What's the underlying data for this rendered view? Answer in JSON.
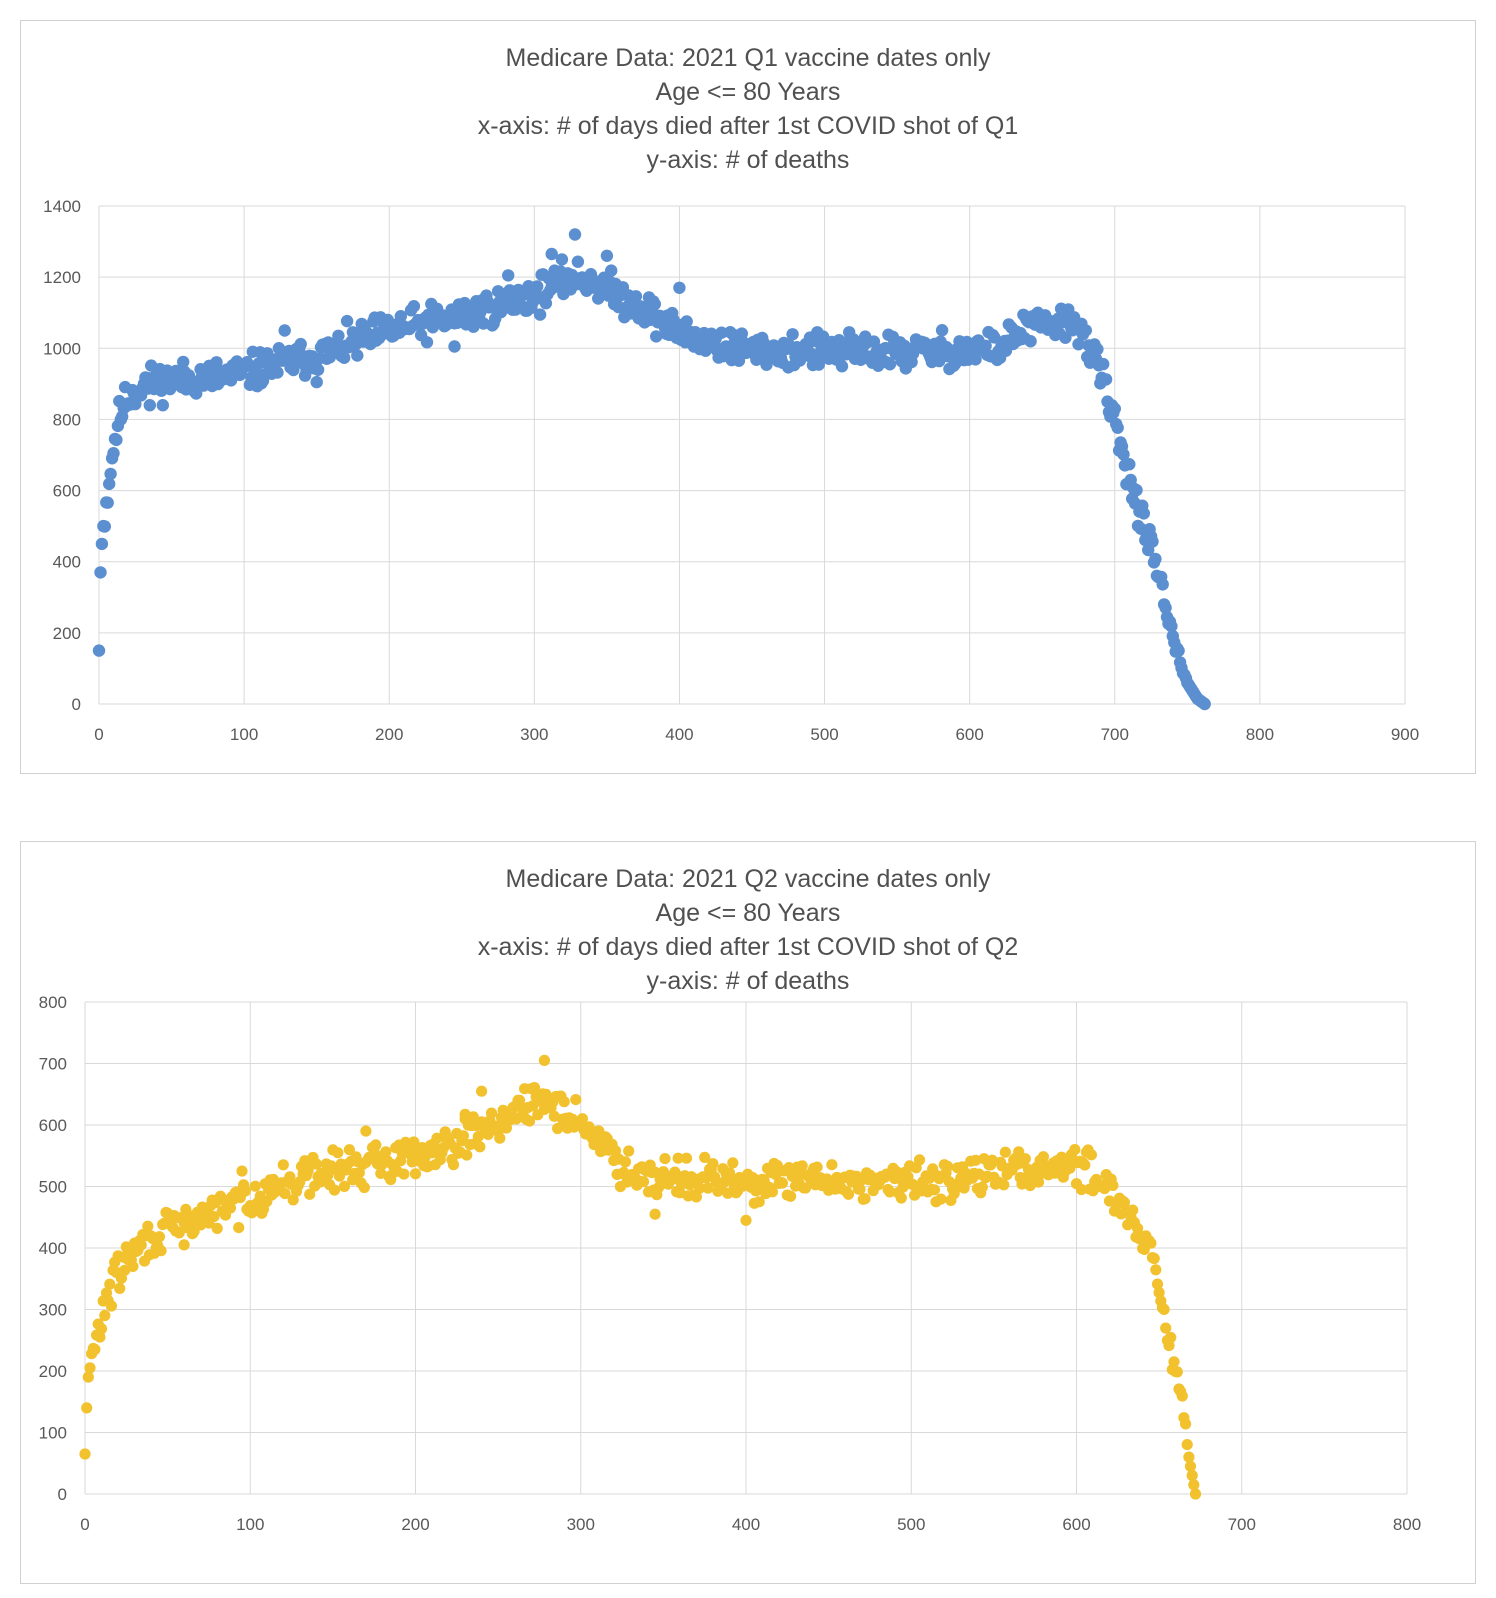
{
  "chart_data": [
    {
      "type": "scatter",
      "title_lines": [
        "Medicare Data: 2021 Q1 vaccine dates only",
        "Age <= 80 Years",
        "x-axis: # of days died after 1st COVID shot of Q1",
        "y-axis: # of deaths"
      ],
      "xlim": [
        0,
        900
      ],
      "ylim": [
        0,
        1400
      ],
      "x_ticks": [
        0,
        100,
        200,
        300,
        400,
        500,
        600,
        700,
        800,
        900
      ],
      "y_ticks": [
        0,
        200,
        400,
        600,
        800,
        1000,
        1200,
        1400
      ],
      "grid": true,
      "marker_color": "#5b8fd0",
      "legend": "none",
      "trend_knots": [
        [
          0,
          150
        ],
        [
          1,
          370
        ],
        [
          2,
          450
        ],
        [
          3,
          500
        ],
        [
          5,
          560
        ],
        [
          7,
          630
        ],
        [
          10,
          720
        ],
        [
          13,
          790
        ],
        [
          17,
          840
        ],
        [
          22,
          870
        ],
        [
          30,
          900
        ],
        [
          50,
          910
        ],
        [
          80,
          920
        ],
        [
          100,
          930
        ],
        [
          130,
          960
        ],
        [
          160,
          990
        ],
        [
          200,
          1050
        ],
        [
          250,
          1090
        ],
        [
          300,
          1150
        ],
        [
          325,
          1200
        ],
        [
          340,
          1190
        ],
        [
          380,
          1100
        ],
        [
          400,
          1040
        ],
        [
          440,
          1000
        ],
        [
          500,
          990
        ],
        [
          560,
          990
        ],
        [
          620,
          1000
        ],
        [
          640,
          1060
        ],
        [
          675,
          1070
        ],
        [
          685,
          980
        ],
        [
          692,
          910
        ],
        [
          700,
          790
        ],
        [
          710,
          640
        ],
        [
          720,
          500
        ],
        [
          730,
          360
        ],
        [
          740,
          180
        ],
        [
          750,
          60
        ],
        [
          757,
          15
        ],
        [
          762,
          0
        ]
      ],
      "noise": 35,
      "outliers": [
        [
          328,
          1320
        ],
        [
          312,
          1265
        ],
        [
          350,
          1260
        ],
        [
          400,
          1170
        ],
        [
          128,
          1050
        ],
        [
          245,
          1005
        ],
        [
          282,
          1205
        ],
        [
          35,
          840
        ],
        [
          150,
          905
        ]
      ]
    },
    {
      "type": "scatter",
      "title_lines": [
        "Medicare Data: 2021 Q2 vaccine dates only",
        "Age <= 80 Years",
        "x-axis: # of days died after 1st COVID shot of Q2",
        "y-axis: # of deaths"
      ],
      "xlim": [
        0,
        800
      ],
      "ylim": [
        0,
        800
      ],
      "x_ticks": [
        0,
        100,
        200,
        300,
        400,
        500,
        600,
        700,
        800
      ],
      "y_ticks": [
        0,
        100,
        200,
        300,
        400,
        500,
        600,
        700,
        800
      ],
      "grid": true,
      "marker_color": "#f2c12e",
      "legend": "none",
      "trend_knots": [
        [
          0,
          65
        ],
        [
          1,
          140
        ],
        [
          2,
          190
        ],
        [
          4,
          220
        ],
        [
          8,
          260
        ],
        [
          12,
          310
        ],
        [
          18,
          350
        ],
        [
          25,
          380
        ],
        [
          40,
          415
        ],
        [
          60,
          440
        ],
        [
          90,
          470
        ],
        [
          110,
          495
        ],
        [
          140,
          520
        ],
        [
          170,
          535
        ],
        [
          200,
          550
        ],
        [
          230,
          580
        ],
        [
          260,
          620
        ],
        [
          280,
          640
        ],
        [
          300,
          605
        ],
        [
          315,
          560
        ],
        [
          330,
          525
        ],
        [
          360,
          515
        ],
        [
          400,
          505
        ],
        [
          450,
          510
        ],
        [
          500,
          505
        ],
        [
          560,
          525
        ],
        [
          590,
          535
        ],
        [
          605,
          530
        ],
        [
          620,
          500
        ],
        [
          635,
          445
        ],
        [
          645,
          390
        ],
        [
          650,
          320
        ],
        [
          655,
          260
        ],
        [
          660,
          200
        ],
        [
          665,
          130
        ],
        [
          668,
          60
        ],
        [
          672,
          0
        ]
      ],
      "noise": 22,
      "outliers": [
        [
          278,
          705
        ],
        [
          170,
          590
        ],
        [
          230,
          610
        ],
        [
          345,
          455
        ],
        [
          400,
          445
        ],
        [
          60,
          405
        ],
        [
          95,
          525
        ],
        [
          240,
          655
        ]
      ]
    }
  ]
}
